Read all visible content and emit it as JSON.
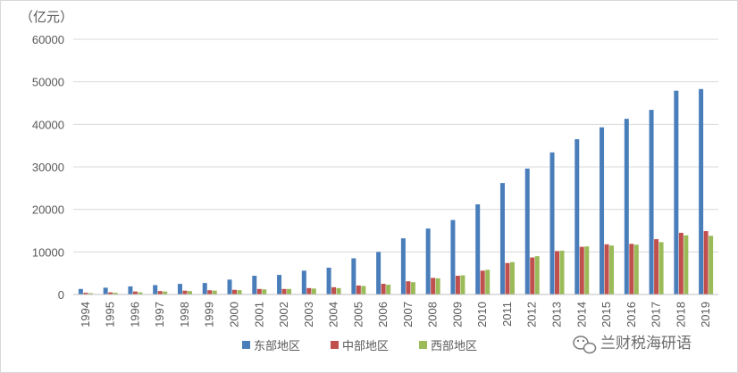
{
  "chart_data": {
    "type": "bar",
    "unit_label": "（亿元）",
    "categories": [
      "1994",
      "1995",
      "1996",
      "1997",
      "1998",
      "1999",
      "2000",
      "2001",
      "2002",
      "2003",
      "2004",
      "2005",
      "2006",
      "2007",
      "2008",
      "2009",
      "2010",
      "2011",
      "2012",
      "2013",
      "2014",
      "2015",
      "2016",
      "2017",
      "2018",
      "2019"
    ],
    "series": [
      {
        "name": "东部地区",
        "color": "#4a7ebb",
        "values": [
          1300,
          1600,
          1900,
          2200,
          2500,
          2700,
          3500,
          4400,
          4600,
          5600,
          6300,
          8500,
          10000,
          13200,
          15500,
          17500,
          21200,
          26200,
          29600,
          33400,
          36500,
          39300,
          41300,
          43400,
          47900,
          48300
        ]
      },
      {
        "name": "中部地区",
        "color": "#c0504d",
        "values": [
          400,
          500,
          700,
          800,
          900,
          1000,
          1100,
          1300,
          1300,
          1500,
          1700,
          2100,
          2500,
          3100,
          3900,
          4400,
          5600,
          7400,
          8700,
          10200,
          11200,
          11800,
          11900,
          13000,
          14500,
          14900
        ]
      },
      {
        "name": "西部地区",
        "color": "#9bbb59",
        "values": [
          300,
          400,
          500,
          700,
          800,
          900,
          1000,
          1200,
          1300,
          1400,
          1500,
          2000,
          2300,
          2900,
          3800,
          4500,
          5800,
          7600,
          9000,
          10300,
          11300,
          11500,
          11700,
          12300,
          13900,
          13800
        ]
      }
    ],
    "ylim": [
      0,
      60000
    ],
    "yticks": [
      0,
      10000,
      20000,
      30000,
      40000,
      50000,
      60000
    ],
    "grid": true,
    "legend_position": "bottom"
  },
  "watermark": {
    "text": "兰财税海研语",
    "icon": "wechat-icon"
  }
}
